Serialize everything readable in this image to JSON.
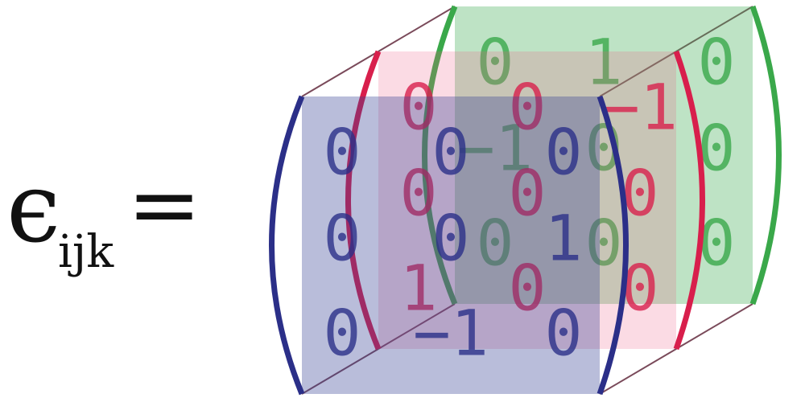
{
  "lhs": {
    "symbol": "ϵ",
    "subscript": "ijk",
    "equals": "="
  },
  "layers": [
    {
      "color": "#3aa84a",
      "fill": "rgba(70,175,90,0.35)",
      "rows": [
        [
          "0",
          "1",
          "0"
        ],
        [
          "−1",
          "0",
          "0"
        ],
        [
          "0",
          "0",
          "0"
        ]
      ]
    },
    {
      "color": "#d81f4c",
      "fill": "rgba(235,90,130,0.22)",
      "rows": [
        [
          "0",
          "0",
          "−1"
        ],
        [
          "0",
          "0",
          "0"
        ],
        [
          "1",
          "0",
          "0"
        ]
      ]
    },
    {
      "color": "#2b2f88",
      "fill": "rgba(55,65,150,0.35)",
      "rows": [
        [
          "0",
          "0",
          "0"
        ],
        [
          "0",
          "0",
          "1"
        ],
        [
          "0",
          "−1",
          "0"
        ]
      ]
    }
  ]
}
